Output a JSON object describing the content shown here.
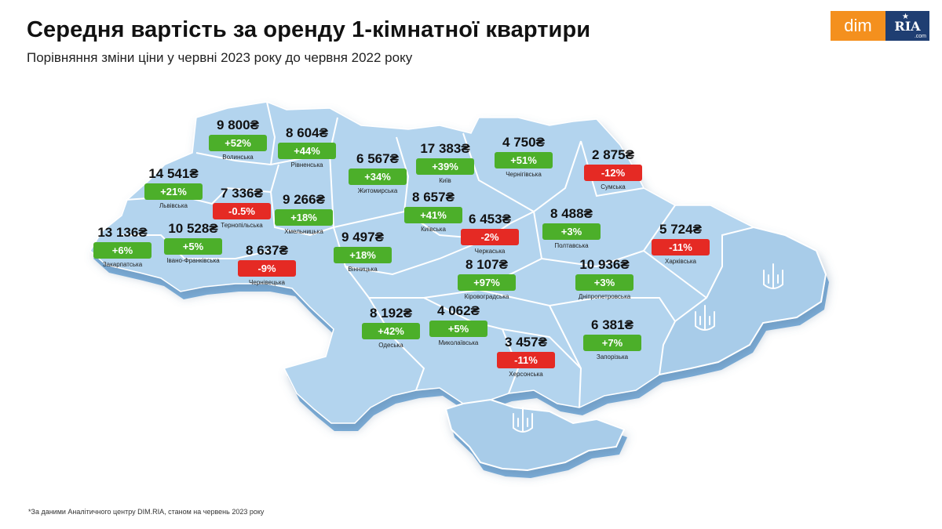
{
  "header": {
    "title": "Середня вартість за оренду 1-кімнатної квартири",
    "subtitle": "Порівняння зміни ціни у червні 2023 року до червня 2022 року"
  },
  "logo": {
    "left": "dim",
    "right": "RIA",
    "right_sub": ".com",
    "star": "★"
  },
  "colors": {
    "map_fill": "#b3d4ee",
    "map_edge": "#7fb2de",
    "positive": "#4caf2a",
    "negative": "#e52a24",
    "logo_orange": "#f4901e",
    "logo_blue": "#1f3e72"
  },
  "regions": [
    {
      "id": "volynska",
      "name": "Волинська",
      "price": "9 800₴",
      "change": "+52%",
      "trend": "up"
    },
    {
      "id": "rivnenska",
      "name": "Рівненська",
      "price": "8 604₴",
      "change": "+44%",
      "trend": "up"
    },
    {
      "id": "lvivska",
      "name": "Львівська",
      "price": "14 541₴",
      "change": "+21%",
      "trend": "up"
    },
    {
      "id": "ternopilska",
      "name": "Тернопільська",
      "price": "7 336₴",
      "change": "-0.5%",
      "trend": "down"
    },
    {
      "id": "zakarpatska",
      "name": "Закарпатська",
      "price": "13 136₴",
      "change": "+6%",
      "trend": "up"
    },
    {
      "id": "ivano-frankivska",
      "name": "Івано-Франківська",
      "price": "10 528₴",
      "change": "+5%",
      "trend": "up"
    },
    {
      "id": "chernivetska",
      "name": "Чернівецька",
      "price": "8 637₴",
      "change": "-9%",
      "trend": "down"
    },
    {
      "id": "khmelnytska",
      "name": "Хмельницька",
      "price": "9 266₴",
      "change": "+18%",
      "trend": "up"
    },
    {
      "id": "zhytomyrska",
      "name": "Житомирська",
      "price": "6 567₴",
      "change": "+34%",
      "trend": "up"
    },
    {
      "id": "vinnytska",
      "name": "Вінницька",
      "price": "9 497₴",
      "change": "+18%",
      "trend": "up"
    },
    {
      "id": "kyiv",
      "name": "Київ",
      "price": "17 383₴",
      "change": "+39%",
      "trend": "up"
    },
    {
      "id": "kyivska",
      "name": "Київська",
      "price": "8 657₴",
      "change": "+41%",
      "trend": "up"
    },
    {
      "id": "chernihivska",
      "name": "Чернігівська",
      "price": "4 750₴",
      "change": "+51%",
      "trend": "up"
    },
    {
      "id": "sumska",
      "name": "Сумська",
      "price": "2 875₴",
      "change": "-12%",
      "trend": "down"
    },
    {
      "id": "cherkaska",
      "name": "Черкаська",
      "price": "6 453₴",
      "change": "-2%",
      "trend": "down"
    },
    {
      "id": "poltavska",
      "name": "Полтавська",
      "price": "8 488₴",
      "change": "+3%",
      "trend": "up"
    },
    {
      "id": "kharkivska",
      "name": "Харківська",
      "price": "5 724₴",
      "change": "-11%",
      "trend": "down"
    },
    {
      "id": "kirovohradska",
      "name": "Кіровоградська",
      "price": "8 107₴",
      "change": "+97%",
      "trend": "up"
    },
    {
      "id": "dnipropetrovska",
      "name": "Дніпропетровська",
      "price": "10 936₴",
      "change": "+3%",
      "trend": "up"
    },
    {
      "id": "odeska",
      "name": "Одеська",
      "price": "8 192₴",
      "change": "+42%",
      "trend": "up"
    },
    {
      "id": "mykolaivska",
      "name": "Миколаївська",
      "price": "4 062₴",
      "change": "+5%",
      "trend": "up"
    },
    {
      "id": "khersonska",
      "name": "Херсонська",
      "price": "3 457₴",
      "change": "-11%",
      "trend": "down"
    },
    {
      "id": "zaporizka",
      "name": "Запорізька",
      "price": "6 381₴",
      "change": "+7%",
      "trend": "up"
    }
  ],
  "footnote": "*За даними Аналітичного центру DIM.RIA, станом на червень 2023 року"
}
